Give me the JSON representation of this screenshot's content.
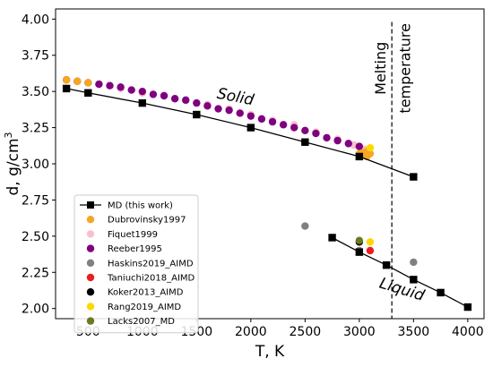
{
  "chart_data": {
    "type": "scatter",
    "xlabel": "T, K",
    "ylabel_main": "d, g/cm",
    "ylabel_sup": "3",
    "xlim": [
      200,
      4150
    ],
    "ylim": [
      1.93,
      4.07
    ],
    "x_ticks": [
      500,
      1000,
      1500,
      2000,
      2500,
      3000,
      3500,
      4000
    ],
    "y_ticks": [
      2.0,
      2.25,
      2.5,
      2.75,
      3.0,
      3.25,
      3.5,
      3.75,
      4.0
    ],
    "x_tick_labels": [
      "500",
      "1000",
      "1500",
      "2000",
      "2500",
      "3000",
      "3500",
      "4000"
    ],
    "y_tick_labels": [
      "2.00",
      "2.25",
      "2.50",
      "2.75",
      "3.00",
      "3.25",
      "3.50",
      "3.75",
      "4.00"
    ],
    "grid": false,
    "legend_position": "lower-left",
    "annotations": {
      "solid": "Solid",
      "liquid": "Liquid",
      "melting_line1": "Melting",
      "melting_line2": "temperature"
    },
    "melting_temperature": 3300,
    "series": [
      {
        "name": "MD (this work)",
        "marker": "square",
        "color": "#000000",
        "line": true,
        "segments": [
          [
            [
              300,
              3.52
            ],
            [
              500,
              3.49
            ],
            [
              1000,
              3.42
            ],
            [
              1500,
              3.34
            ],
            [
              2000,
              3.25
            ],
            [
              2500,
              3.15
            ],
            [
              3000,
              3.05
            ],
            [
              3500,
              2.91
            ]
          ],
          [
            [
              2750,
              2.49
            ],
            [
              3000,
              2.39
            ],
            [
              3250,
              2.3
            ],
            [
              3500,
              2.2
            ],
            [
              3750,
              2.11
            ],
            [
              4000,
              2.01
            ]
          ]
        ]
      },
      {
        "name": "Dubrovinsky1997",
        "marker": "circle",
        "color": "#f5a623",
        "points": [
          [
            300,
            3.58
          ],
          [
            400,
            3.57
          ],
          [
            500,
            3.56
          ],
          [
            3000,
            3.07
          ],
          [
            3030,
            3.06
          ],
          [
            3050,
            3.08
          ],
          [
            3070,
            3.05
          ],
          [
            3080,
            3.09
          ],
          [
            3100,
            3.07
          ]
        ]
      },
      {
        "name": "Fiquet1999",
        "marker": "circle",
        "color": "#f9c0cb",
        "points": [
          [
            400,
            3.57
          ],
          [
            600,
            3.55
          ],
          [
            800,
            3.52
          ],
          [
            1000,
            3.49
          ],
          [
            1200,
            3.47
          ],
          [
            1400,
            3.44
          ],
          [
            1600,
            3.41
          ],
          [
            1800,
            3.38
          ],
          [
            2000,
            3.34
          ],
          [
            2200,
            3.3
          ],
          [
            2400,
            3.27
          ],
          [
            2600,
            3.22
          ],
          [
            2800,
            3.17
          ],
          [
            2950,
            3.13
          ],
          [
            3050,
            3.1
          ]
        ]
      },
      {
        "name": "Reeber1995",
        "marker": "circle",
        "color": "#800080",
        "points": [
          [
            300,
            3.58
          ],
          [
            400,
            3.57
          ],
          [
            500,
            3.56
          ],
          [
            600,
            3.55
          ],
          [
            700,
            3.54
          ],
          [
            800,
            3.53
          ],
          [
            900,
            3.51
          ],
          [
            1000,
            3.5
          ],
          [
            1100,
            3.48
          ],
          [
            1200,
            3.47
          ],
          [
            1300,
            3.45
          ],
          [
            1400,
            3.44
          ],
          [
            1500,
            3.42
          ],
          [
            1600,
            3.4
          ],
          [
            1700,
            3.38
          ],
          [
            1800,
            3.37
          ],
          [
            1900,
            3.35
          ],
          [
            2000,
            3.33
          ],
          [
            2100,
            3.31
          ],
          [
            2200,
            3.29
          ],
          [
            2300,
            3.27
          ],
          [
            2400,
            3.25
          ],
          [
            2500,
            3.23
          ],
          [
            2600,
            3.21
          ],
          [
            2700,
            3.18
          ],
          [
            2800,
            3.16
          ],
          [
            2900,
            3.14
          ],
          [
            3000,
            3.12
          ]
        ]
      },
      {
        "name": "Haskins2019_AIMD",
        "marker": "circle",
        "color": "#808080",
        "points": [
          [
            2500,
            2.57
          ],
          [
            3500,
            2.32
          ],
          [
            3000,
            2.4
          ]
        ]
      },
      {
        "name": "Taniuchi2018_AIMD",
        "marker": "circle",
        "color": "#ee1c1c",
        "points": [
          [
            3100,
            2.4
          ]
        ]
      },
      {
        "name": "Koker2013_AIMD",
        "marker": "circle",
        "color": "#000000",
        "points": [
          [
            3000,
            2.46
          ]
        ]
      },
      {
        "name": "Rang2019_AIMD",
        "marker": "circle",
        "color": "#ffd700",
        "points": [
          [
            3100,
            2.46
          ],
          [
            3100,
            3.11
          ]
        ]
      },
      {
        "name": "Lacks2007_MD",
        "marker": "circle",
        "color": "#6b7a1e",
        "points": [
          [
            3000,
            2.47
          ]
        ]
      }
    ]
  }
}
